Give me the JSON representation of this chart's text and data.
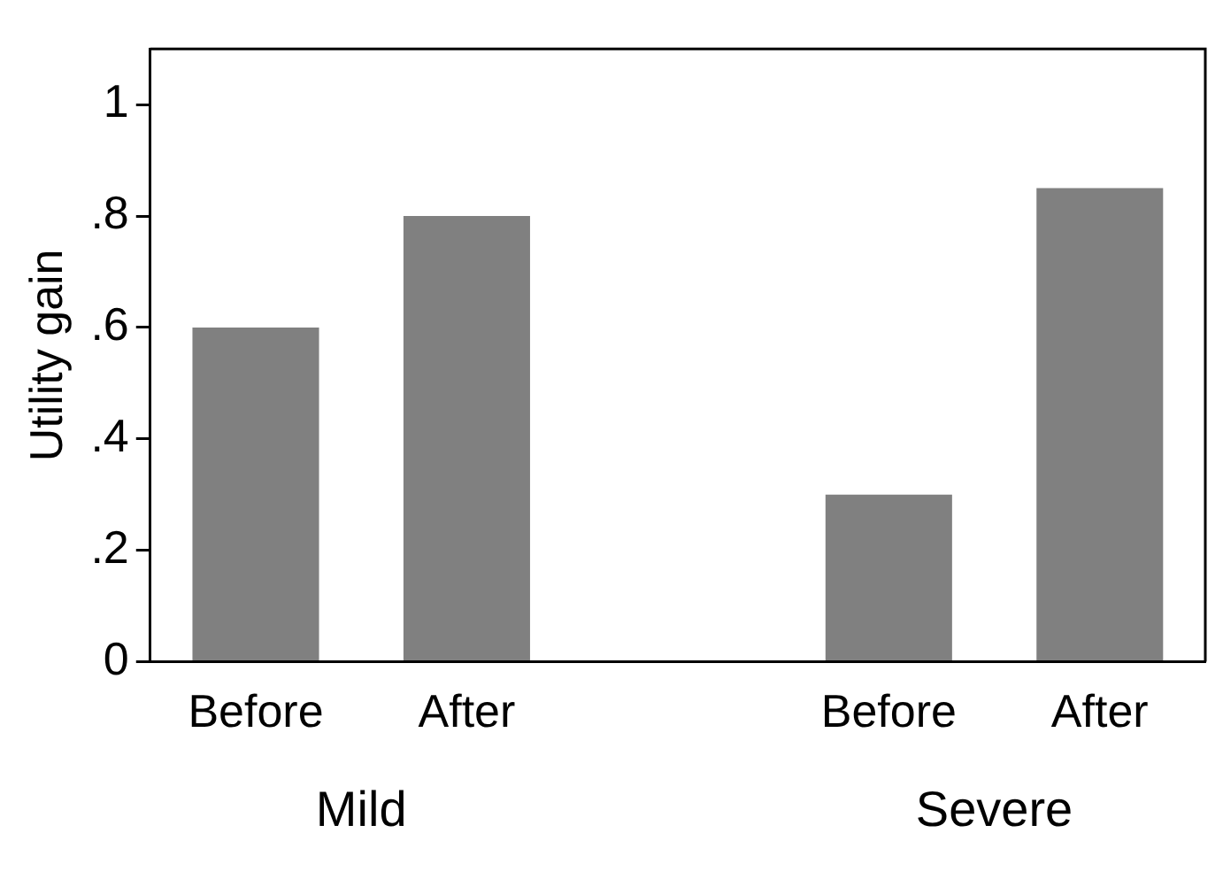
{
  "chart_data": {
    "type": "bar",
    "ylabel": "Utility gain",
    "categories": [
      "Before",
      "After",
      null,
      "Before",
      "After"
    ],
    "values": [
      0.6,
      0.8,
      null,
      0.3,
      0.85
    ],
    "color": "#808080",
    "ylim": [
      0,
      1.1
    ],
    "yticks": [
      0,
      {
        "value": 0.2,
        "label": ".2"
      },
      {
        "value": 0.4,
        "label": ".4"
      },
      {
        "value": 0.6,
        "label": ".6"
      },
      {
        "value": 0.8,
        "label": ".8"
      },
      1
    ],
    "annotations": [
      "Mild",
      "Severe"
    ],
    "grid": false,
    "legend": false
  }
}
